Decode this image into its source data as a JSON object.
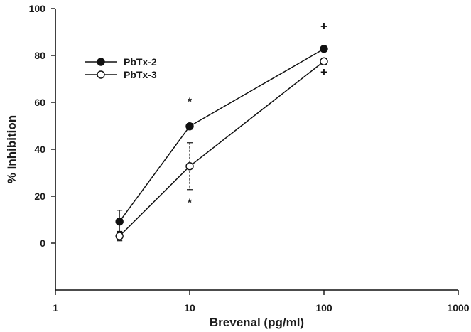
{
  "chart_data": {
    "type": "line",
    "xlabel": "Brevenal (pg/ml)",
    "ylabel": "% Inhibition",
    "xscale": "log",
    "xlim": [
      1,
      1000
    ],
    "ylim": [
      -20,
      100
    ],
    "xticks": [
      1,
      10,
      100,
      1000
    ],
    "xtick_labels": [
      "1",
      "10",
      "100",
      "1000"
    ],
    "yticks": [
      0,
      20,
      40,
      60,
      80,
      100
    ],
    "ytick_labels": [
      "0",
      "20",
      "40",
      "60",
      "80",
      "100"
    ],
    "grid": false,
    "legend_position": "top-left",
    "series": [
      {
        "name": "PbTx-2",
        "marker": "filled-circle",
        "color": "#111111",
        "x": [
          3,
          10,
          100
        ],
        "y": [
          9.2,
          49.8,
          82.8
        ],
        "err": [
          4.8,
          1.2,
          1.0
        ]
      },
      {
        "name": "PbTx-3",
        "marker": "open-circle",
        "color": "#111111",
        "x": [
          3,
          10,
          100
        ],
        "y": [
          3.0,
          32.8,
          77.5
        ],
        "err": [
          2.0,
          10.0,
          1.2
        ]
      }
    ],
    "annotations": [
      {
        "text": "*",
        "x": 10,
        "y": 60.5
      },
      {
        "text": "*",
        "x": 10,
        "y": 17.5
      },
      {
        "text": "+",
        "x": 100,
        "y": 92.5
      },
      {
        "text": "+",
        "x": 100,
        "y": 73.0
      }
    ]
  }
}
